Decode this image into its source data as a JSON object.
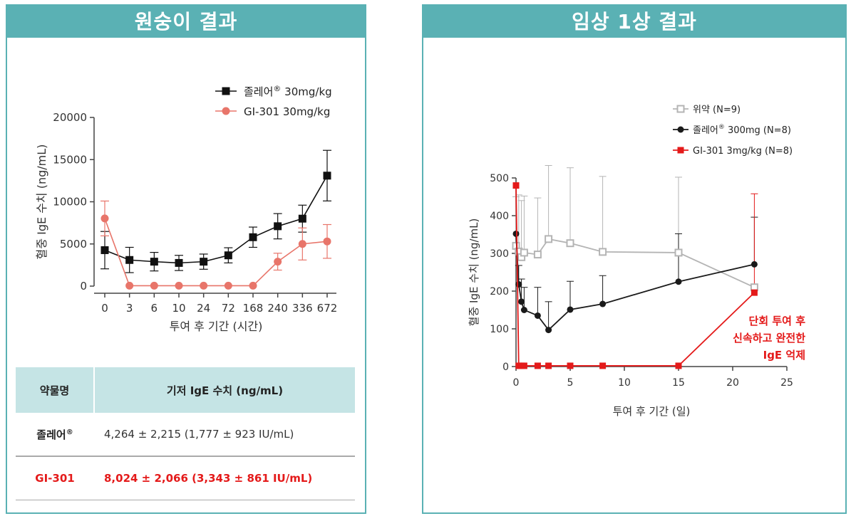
{
  "left_panel": {
    "title": "원숭이 결과",
    "table": {
      "headers": [
        "약물명",
        "기저 IgE 수치 (ng/mL)"
      ],
      "rows": [
        {
          "drug": "졸레어",
          "sup": "®",
          "value": "4,264 ± 2,215  (1,777 ± 923 IU/mL)"
        },
        {
          "drug": "GI-301",
          "sup": "",
          "value": "8,024 ± 2,066  (3,343 ± 861 IU/mL)"
        }
      ]
    }
  },
  "right_panel": {
    "title": "임상 1상 결과",
    "annotation": [
      "단회 투여 후",
      "신속하고 완전한",
      "IgE 억제"
    ]
  },
  "colors": {
    "teal": "#5ab1b4",
    "table_header_bg": "#c5e4e5",
    "monkey_xolair": "#111111",
    "monkey_gi301": "#e8756a",
    "placebo": "#b4b4b4",
    "clinical_xolair": "#1a1a1a",
    "clinical_gi301": "#e41a1a"
  },
  "chart_data": [
    {
      "type": "line",
      "ylabel": "혈중 IgE 수치 (ng/mL)",
      "xlabel": "투여 후 기간 (시간)",
      "categories": [
        "0",
        "3",
        "6",
        "10",
        "24",
        "72",
        "168",
        "240",
        "336",
        "672"
      ],
      "y_ticks": [
        0,
        5000,
        10000,
        15000,
        20000
      ],
      "ylim": [
        0,
        20000
      ],
      "legend_position": "top-right",
      "series": [
        {
          "name": "졸레어",
          "name_sup": "®",
          "name_suffix": " 30mg/kg",
          "marker": "square",
          "color": "#111111",
          "values": [
            4264,
            3100,
            2900,
            2750,
            2900,
            3650,
            5800,
            7100,
            8000,
            13100
          ],
          "error": [
            2215,
            1500,
            1100,
            900,
            900,
            900,
            1200,
            1500,
            1600,
            3000
          ]
        },
        {
          "name": "GI-301",
          "name_suffix": " 30mg/kg",
          "marker": "circle",
          "color": "#e8756a",
          "values": [
            8024,
            50,
            50,
            50,
            50,
            50,
            50,
            2900,
            5000,
            5300
          ],
          "error": [
            2066,
            0,
            0,
            0,
            0,
            0,
            0,
            1000,
            1900,
            2000
          ]
        }
      ]
    },
    {
      "type": "line",
      "ylabel": "혈중 IgE 수치 (ng/mL)",
      "xlabel": "투여 후 기간 (일)",
      "x_ticks": [
        0,
        5,
        10,
        15,
        20,
        25
      ],
      "y_ticks": [
        0,
        100,
        200,
        300,
        400,
        500
      ],
      "xlim": [
        0,
        25
      ],
      "ylim": [
        0,
        500
      ],
      "legend_position": "top-right",
      "series": [
        {
          "name": "위약",
          "name_suffix": " (N=9)",
          "marker": "open-square",
          "color": "#b4b4b4",
          "x": [
            0,
            0.25,
            0.5,
            0.75,
            2,
            3,
            5,
            8,
            15,
            22
          ],
          "y": [
            320,
            305,
            290,
            302,
            297,
            338,
            327,
            304,
            302,
            210
          ],
          "error": [
            130,
            150,
            150,
            150,
            150,
            195,
            200,
            200,
            200,
            0
          ]
        },
        {
          "name": "졸레어",
          "name_sup": "®",
          "name_suffix": " 300mg (N=8)",
          "marker": "circle",
          "color": "#1a1a1a",
          "x": [
            0,
            0.25,
            0.5,
            0.75,
            2,
            3,
            5,
            8,
            15,
            22
          ],
          "y": [
            352,
            218,
            172,
            150,
            135,
            97,
            151,
            166,
            225,
            271
          ],
          "error": [
            0,
            50,
            60,
            60,
            75,
            75,
            75,
            75,
            127,
            125
          ]
        },
        {
          "name": "GI-301",
          "name_suffix": " 3mg/kg (N=8)",
          "marker": "square",
          "color": "#e41a1a",
          "x": [
            0,
            0.25,
            0.5,
            0.75,
            2,
            3,
            5,
            8,
            15,
            22
          ],
          "y": [
            480,
            2,
            2,
            2,
            2,
            2,
            2,
            2,
            2,
            196
          ],
          "error": [
            0,
            0,
            0,
            0,
            0,
            0,
            0,
            0,
            0,
            262
          ]
        }
      ]
    }
  ]
}
